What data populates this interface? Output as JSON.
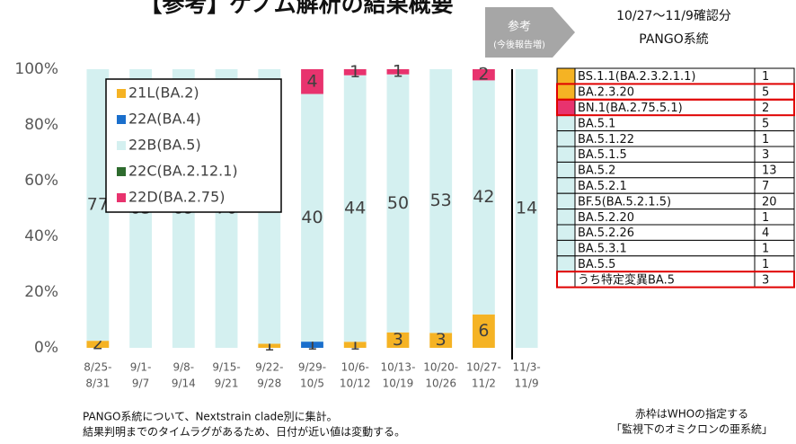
{
  "chart_data": {
    "type": "bar",
    "stacking": "percent",
    "title": "【参考】ゲノム解析の結果概要",
    "annotation": [
      "参考",
      "(今後報告増)"
    ],
    "categories": [
      [
        "8/25-",
        "8/31"
      ],
      [
        "9/1-",
        "9/7"
      ],
      [
        "9/8-",
        "9/14"
      ],
      [
        "9/15-",
        "9/21"
      ],
      [
        "9/22-",
        "9/28"
      ],
      [
        "9/29-",
        "10/5"
      ],
      [
        "10/6-",
        "10/12"
      ],
      [
        "10/13-",
        "10/19"
      ],
      [
        "10/20-",
        "10/26"
      ],
      [
        "10/27-",
        "11/2"
      ],
      [
        "11/3-",
        "11/9"
      ]
    ],
    "series": [
      {
        "name": "21L(BA.2)",
        "color": "#f5b324",
        "values": [
          2,
          0,
          0,
          0,
          1,
          0,
          1,
          3,
          3,
          6,
          0
        ]
      },
      {
        "name": "22A(BA.4)",
        "color": "#1a6fcc",
        "values": [
          0,
          0,
          0,
          0,
          0,
          1,
          0,
          0,
          0,
          0,
          0
        ]
      },
      {
        "name": "22B(BA.5)",
        "color": "#d4f0f0",
        "values": [
          77,
          63,
          69,
          70,
          67,
          40,
          44,
          50,
          53,
          42,
          14
        ]
      },
      {
        "name": "22C(BA.2.12.1)",
        "color": "#2e6b2e",
        "values": [
          0,
          0,
          0,
          0,
          0,
          0,
          0,
          0,
          0,
          0,
          0
        ]
      },
      {
        "name": "22D(BA.2.75)",
        "color": "#e8336e",
        "values": [
          0,
          0,
          0,
          0,
          0,
          4,
          1,
          1,
          0,
          2,
          0
        ]
      }
    ],
    "ylim": [
      0,
      100
    ],
    "yticks": [
      {
        "value": 0,
        "label": "0%"
      },
      {
        "value": 20,
        "label": "20%"
      },
      {
        "value": 40,
        "label": "40%"
      },
      {
        "value": 60,
        "label": "60%"
      },
      {
        "value": 80,
        "label": "80%"
      },
      {
        "value": 100,
        "label": "100%"
      }
    ],
    "legend": "upper left",
    "notes": [
      "PANGO系統について、Nextstrain clade別に集計。",
      "結果判明までのタイムラグがあるため、日付が近い値は変動する。"
    ]
  },
  "table": {
    "title": [
      "10/27～11/9確認分",
      "PANGO系統"
    ],
    "rows": [
      {
        "color": "#f5b324",
        "lineage": "BS.1.1(BA.2.3.2.1.1)",
        "count": "1",
        "red": false
      },
      {
        "color": "#f5b324",
        "lineage": "BA.2.3.20",
        "count": "5",
        "red": true
      },
      {
        "color": "#e8336e",
        "lineage": "BN.1(BA.2.75.5.1)",
        "count": "2",
        "red": true
      },
      {
        "color": "#d4f0f0",
        "lineage": "BA.5.1",
        "count": "5",
        "red": false
      },
      {
        "color": "#d4f0f0",
        "lineage": "BA.5.1.22",
        "count": "1",
        "red": false
      },
      {
        "color": "#d4f0f0",
        "lineage": "BA.5.1.5",
        "count": "3",
        "red": false
      },
      {
        "color": "#d4f0f0",
        "lineage": "BA.5.2",
        "count": "13",
        "red": false
      },
      {
        "color": "#d4f0f0",
        "lineage": "BA.5.2.1",
        "count": "7",
        "red": false
      },
      {
        "color": "#d4f0f0",
        "lineage": "BF.5(BA.5.2.1.5)",
        "count": "20",
        "red": false
      },
      {
        "color": "#d4f0f0",
        "lineage": "BA.5.2.20",
        "count": "1",
        "red": false
      },
      {
        "color": "#d4f0f0",
        "lineage": "BA.5.2.26",
        "count": "4",
        "red": false
      },
      {
        "color": "#d4f0f0",
        "lineage": "BA.5.3.1",
        "count": "1",
        "red": false
      },
      {
        "color": "#d4f0f0",
        "lineage": "BA.5.5",
        "count": "1",
        "red": false
      },
      {
        "color": "#ffffff",
        "lineage": "うち特定変異BA.5",
        "count": "3",
        "red": true
      }
    ],
    "note": [
      "赤枠はWHOの指定する",
      "「監視下のオミクロンの亜系統」"
    ]
  }
}
